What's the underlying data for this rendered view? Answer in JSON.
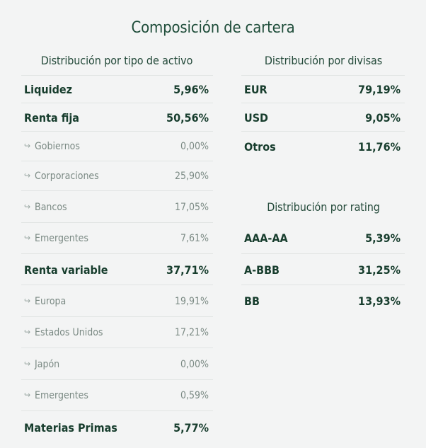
{
  "title": "Composición de cartera",
  "asset_type": {
    "title": "Distribución por tipo de activo",
    "rows": [
      {
        "label": "Liquidez",
        "value": "5,96%",
        "kind": "main"
      },
      {
        "label": "Renta fija",
        "value": "50,56%",
        "kind": "main"
      },
      {
        "label": "Gobiernos",
        "value": "0,00%",
        "kind": "sub"
      },
      {
        "label": "Corporaciones",
        "value": "25,90%",
        "kind": "sub"
      },
      {
        "label": "Bancos",
        "value": "17,05%",
        "kind": "sub"
      },
      {
        "label": "Emergentes",
        "value": "7,61%",
        "kind": "sub"
      },
      {
        "label": "Renta variable",
        "value": "37,71%",
        "kind": "main"
      },
      {
        "label": "Europa",
        "value": "19,91%",
        "kind": "sub"
      },
      {
        "label": "Estados Unidos",
        "value": "17,21%",
        "kind": "sub"
      },
      {
        "label": "Japón",
        "value": "0,00%",
        "kind": "sub"
      },
      {
        "label": "Emergentes",
        "value": "0,59%",
        "kind": "sub"
      },
      {
        "label": "Materias Primas",
        "value": "5,77%",
        "kind": "main"
      }
    ]
  },
  "currency": {
    "title": "Distribución por divisas",
    "rows": [
      {
        "label": "EUR",
        "value": "79,19%"
      },
      {
        "label": "USD",
        "value": "9,05%"
      },
      {
        "label": "Otros",
        "value": "11,76%"
      }
    ]
  },
  "rating": {
    "title": "Distribución por rating",
    "rows": [
      {
        "label": "AAA-AA",
        "value": "5,39%"
      },
      {
        "label": "A-BBB",
        "value": "31,25%"
      },
      {
        "label": "BB",
        "value": "13,93%"
      }
    ]
  },
  "icons": {
    "sub_arrow": "return-arrow-icon",
    "sub_arrow_glyph": "↪"
  }
}
